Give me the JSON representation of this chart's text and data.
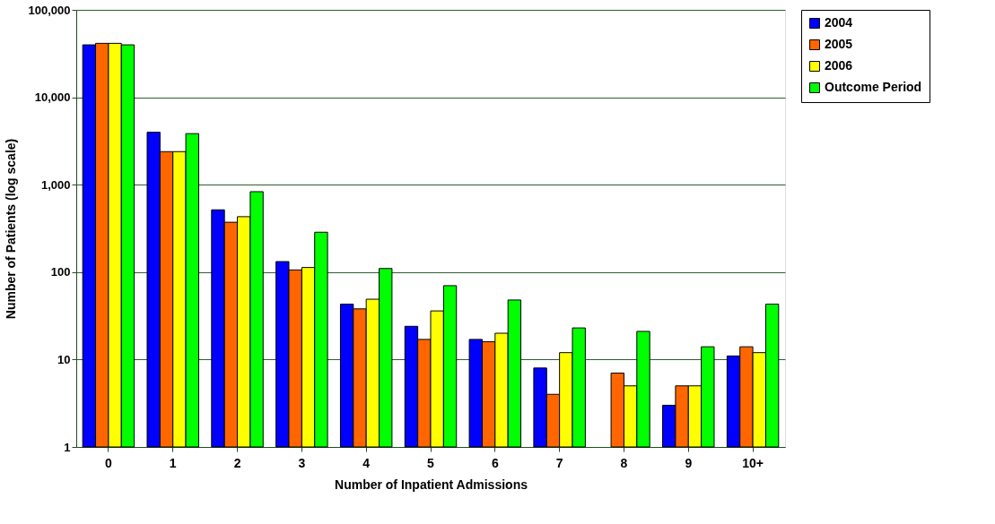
{
  "chart_data": {
    "type": "bar",
    "xlabel": "Number of Inpatient Admissions",
    "ylabel": "Number of Patients (log scale)",
    "categories": [
      "0",
      "1",
      "2",
      "3",
      "4",
      "5",
      "6",
      "7",
      "8",
      "9",
      "10+"
    ],
    "series": [
      {
        "name": "2004",
        "color": "#0000ff",
        "values": [
          39800,
          3980,
          516,
          132,
          43,
          24,
          17,
          8,
          null,
          3,
          11
        ]
      },
      {
        "name": "2005",
        "color": "#ff6600",
        "values": [
          41400,
          2390,
          372,
          106,
          38,
          17,
          16,
          4,
          7,
          5,
          14
        ]
      },
      {
        "name": "2006",
        "color": "#ffff00",
        "values": [
          41400,
          2390,
          431,
          113,
          49,
          36,
          20,
          12,
          5,
          5,
          12
        ]
      },
      {
        "name": "Outcome Period",
        "color": "#00ff00",
        "values": [
          39800,
          3840,
          832,
          286,
          110,
          70,
          48,
          23,
          21,
          14,
          43
        ]
      }
    ],
    "log": true,
    "ylim": [
      1,
      100000
    ],
    "yticks": [
      1,
      10,
      {
        "value": 100,
        "label": "100"
      },
      {
        "value": 1000,
        "label": "1,000"
      },
      {
        "value": 10000,
        "label": "10,000"
      },
      {
        "value": 100000,
        "label": "100,000"
      }
    ],
    "grid": "y",
    "legend": "right"
  }
}
